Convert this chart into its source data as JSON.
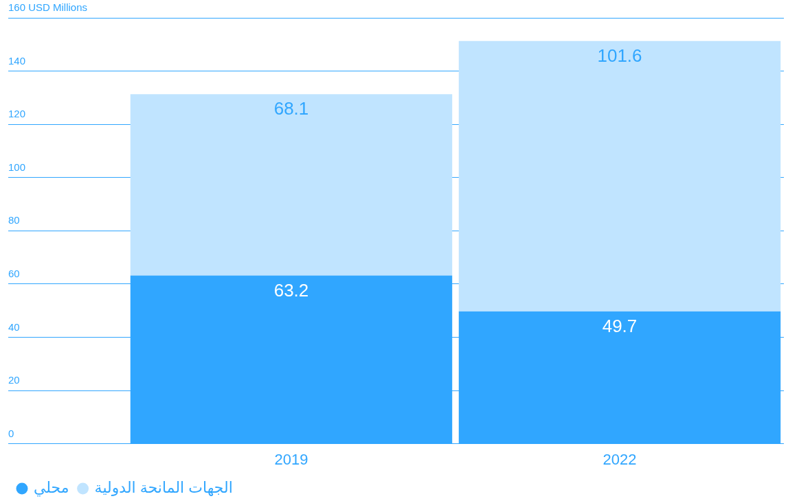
{
  "chart_data": {
    "type": "bar",
    "stacked": true,
    "categories": [
      "2019",
      "2022"
    ],
    "series": [
      {
        "name": "محلي",
        "color": "#30a6ff",
        "values": [
          63.2,
          49.7
        ]
      },
      {
        "name": "الجهات المانحة الدولية",
        "color": "#c0e4ff",
        "values": [
          68.1,
          101.6
        ]
      }
    ],
    "ylim": [
      0,
      160
    ],
    "yticks": [
      0,
      20,
      40,
      60,
      80,
      100,
      120,
      140,
      {
        "value": 160,
        "label": "160 USD Millions"
      }
    ],
    "grid": "y",
    "legend": "bottom left",
    "data_labels": true
  }
}
